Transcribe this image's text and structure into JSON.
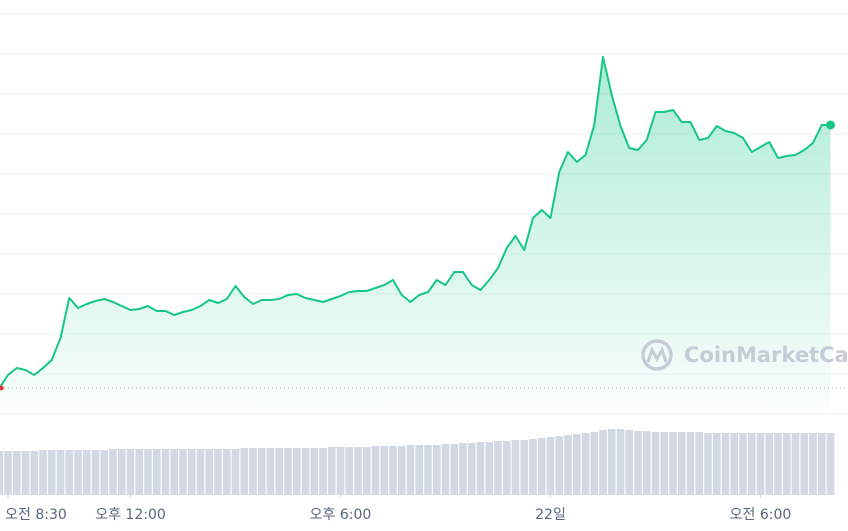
{
  "chart_data": {
    "type": "line",
    "watermark": "CoinMarketCap",
    "color": "#16c784",
    "start_color": "#ea3943",
    "volume_color": "#d3d9e3",
    "grid": true,
    "x": [
      8.25,
      8.5,
      8.75,
      9,
      9.25,
      9.5,
      9.75,
      10,
      10.25,
      10.5,
      10.75,
      11,
      11.25,
      11.5,
      11.75,
      12,
      12.25,
      12.5,
      12.75,
      13,
      13.25,
      13.5,
      13.75,
      14,
      14.25,
      14.5,
      14.75,
      15,
      15.25,
      15.5,
      15.75,
      16,
      16.25,
      16.5,
      16.75,
      17,
      17.25,
      17.5,
      17.75,
      18,
      18.25,
      18.5,
      18.75,
      19,
      19.25,
      19.5,
      19.75,
      20,
      20.25,
      20.5,
      20.75,
      21,
      21.25,
      21.5,
      21.75,
      22,
      22.25,
      22.5,
      22.75,
      23,
      23.25,
      23.5,
      23.75,
      24,
      24.25,
      24.5,
      24.75,
      25,
      25.25,
      25.5,
      25.75,
      26,
      26.25,
      26.5,
      26.75,
      27,
      27.25,
      27.5,
      27.75,
      28,
      28.25,
      28.5,
      28.75,
      29,
      29.25,
      29.5,
      29.75,
      30,
      30.25,
      30.5,
      30.75,
      31,
      31.25,
      31.5,
      31.75,
      32
    ],
    "values": [
      6.5,
      9.75,
      11.5,
      11,
      9.75,
      11.5,
      13.5,
      19,
      29,
      26.5,
      27.5,
      28.25,
      28.75,
      28,
      27,
      26,
      26.25,
      27,
      25.75,
      25.75,
      24.75,
      25.5,
      26,
      27,
      28.5,
      27.75,
      28.75,
      32,
      29.25,
      27.5,
      28.5,
      28.5,
      28.75,
      29.75,
      30,
      29,
      28.5,
      28,
      28.75,
      29.5,
      30.5,
      30.75,
      30.75,
      31.5,
      32.25,
      33.5,
      29.75,
      28,
      29.75,
      30.5,
      33.5,
      32.25,
      35.5,
      35.5,
      32.25,
      31,
      33.5,
      36.5,
      41.5,
      44.5,
      41,
      49,
      51,
      49,
      60.5,
      65.5,
      63,
      64.75,
      72.25,
      89.25,
      79.75,
      72,
      66.5,
      66,
      68.5,
      75.5,
      75.5,
      76,
      73,
      73,
      68.5,
      69,
      72,
      70.75,
      70.25,
      69,
      65.5,
      66.75,
      68,
      64,
      64.5,
      64.75,
      66,
      67.75,
      72.25,
      72.25
    ],
    "volume": [
      44,
      44,
      44,
      44,
      44,
      45,
      45,
      45,
      45,
      45,
      45,
      45,
      45,
      46,
      46,
      46,
      46,
      46,
      46,
      46,
      46,
      46,
      46,
      46,
      46,
      46,
      46,
      46,
      47,
      47,
      47,
      47,
      47,
      47,
      47,
      47,
      47,
      47,
      48,
      48,
      48,
      48,
      48,
      49,
      49,
      49,
      49,
      50,
      50,
      50,
      50,
      51,
      51,
      52,
      52,
      53,
      53,
      54,
      54,
      55,
      55,
      56,
      57,
      58,
      59,
      60,
      61,
      62,
      63,
      65,
      66,
      66,
      65,
      64,
      64,
      63,
      63,
      63,
      63,
      63,
      63,
      62,
      62,
      62,
      62,
      62,
      62,
      62,
      62,
      62,
      62,
      62,
      62,
      62,
      62,
      62
    ],
    "xlim": [
      8.25,
      32
    ],
    "ylim": [
      0,
      100
    ],
    "y2lim": [
      0,
      100
    ],
    "yticks": [
      0,
      10,
      20,
      30,
      40,
      50,
      60,
      70,
      80,
      90,
      100
    ],
    "xticks": [
      {
        "value": 8.5,
        "label": "오전 8:30"
      },
      {
        "value": 12,
        "label": "오후 12:00"
      },
      {
        "value": 18,
        "label": "오후 6:00"
      },
      {
        "value": 24,
        "label": "22일"
      },
      {
        "value": 30,
        "label": "오전 6:00"
      }
    ]
  }
}
